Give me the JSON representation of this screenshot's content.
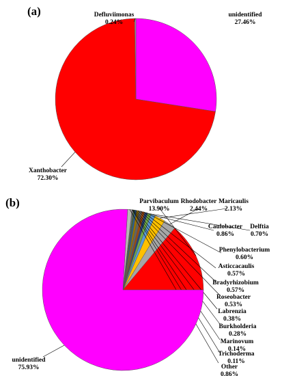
{
  "chart_data": [
    {
      "panel": "(a)",
      "type": "pie",
      "slices": [
        {
          "label": "unidentified",
          "pct": "27.46%",
          "value": 27.46,
          "color": "#ff00ff"
        },
        {
          "label": "Xanthobacter",
          "pct": "72.30%",
          "value": 72.3,
          "color": "#ff0000"
        },
        {
          "label": "Defluviimonas",
          "pct": "0.24%",
          "value": 0.24,
          "color": "#9e9e9e"
        }
      ]
    },
    {
      "panel": "(b)",
      "type": "pie",
      "slices": [
        {
          "label": "Parvibaculum",
          "pct": "13.90%",
          "value": 13.9,
          "color": "#ff0000"
        },
        {
          "label": "Rhodobacter",
          "pct": "2.44%",
          "value": 2.44,
          "color": "#a6a6a6"
        },
        {
          "label": "Maricaulis",
          "pct": "2.13%",
          "value": 2.13,
          "color": "#ffc000"
        },
        {
          "label": "Caulobacter",
          "pct": "0.86%",
          "value": 0.86,
          "color": "#5b9bd5"
        },
        {
          "label": "Delftia",
          "pct": "0.70%",
          "value": 0.7,
          "color": "#70ad47"
        },
        {
          "label": "Phenylobacterium",
          "pct": "0.60%",
          "value": 0.6,
          "color": "#264478"
        },
        {
          "label": "Asticcacaulis",
          "pct": "0.57%",
          "value": 0.57,
          "color": "#9e480e"
        },
        {
          "label": "Bradyrhizobium",
          "pct": "0.57%",
          "value": 0.57,
          "color": "#636363"
        },
        {
          "label": "Roseobacter",
          "pct": "0.53%",
          "value": 0.53,
          "color": "#997300"
        },
        {
          "label": "Labrenzia",
          "pct": "0.38%",
          "value": 0.38,
          "color": "#255e91"
        },
        {
          "label": "Burkholderia",
          "pct": "0.28%",
          "value": 0.28,
          "color": "#43682b"
        },
        {
          "label": "Marinovum",
          "pct": "0.14%",
          "value": 0.14,
          "color": "#698ed0"
        },
        {
          "label": "Trichoderma",
          "pct": "0.11%",
          "value": 0.11,
          "color": "#f1975a"
        },
        {
          "label": "Other",
          "pct": "0.86%",
          "value": 0.86,
          "color": "#b7b7b7"
        },
        {
          "label": "unidentified",
          "pct": "75.93%",
          "value": 75.93,
          "color": "#ff00ff"
        }
      ]
    }
  ]
}
